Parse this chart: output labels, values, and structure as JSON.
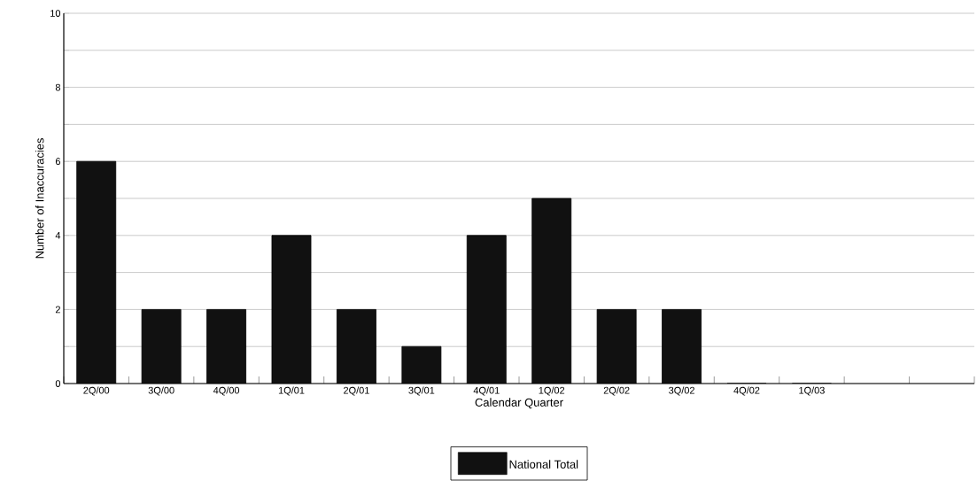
{
  "chart_data": {
    "type": "bar",
    "xlabel": "Calendar Quarter",
    "ylabel": "Number of Inaccuracies",
    "categories": [
      "2Q/00",
      "3Q/00",
      "4Q/00",
      "1Q/01",
      "2Q/01",
      "3Q/01",
      "4Q/01",
      "1Q/02",
      "2Q/02",
      "3Q/02",
      "4Q/02",
      "1Q/03",
      null,
      null
    ],
    "series": [
      {
        "name": "National Total",
        "color": "#111111",
        "values": [
          6,
          2,
          2,
          4,
          2,
          1,
          4,
          5,
          2,
          2,
          0,
          0,
          null,
          null
        ]
      }
    ],
    "ylim": [
      0,
      10
    ],
    "yticks": [
      0,
      {
        "value": 1,
        "label": null
      },
      2,
      {
        "value": 3,
        "label": null
      },
      4,
      {
        "value": 5,
        "label": null
      },
      6,
      {
        "value": 7,
        "label": null
      },
      8,
      {
        "value": 9,
        "label": null
      },
      10
    ],
    "grid": "y",
    "legend": "bottom"
  }
}
